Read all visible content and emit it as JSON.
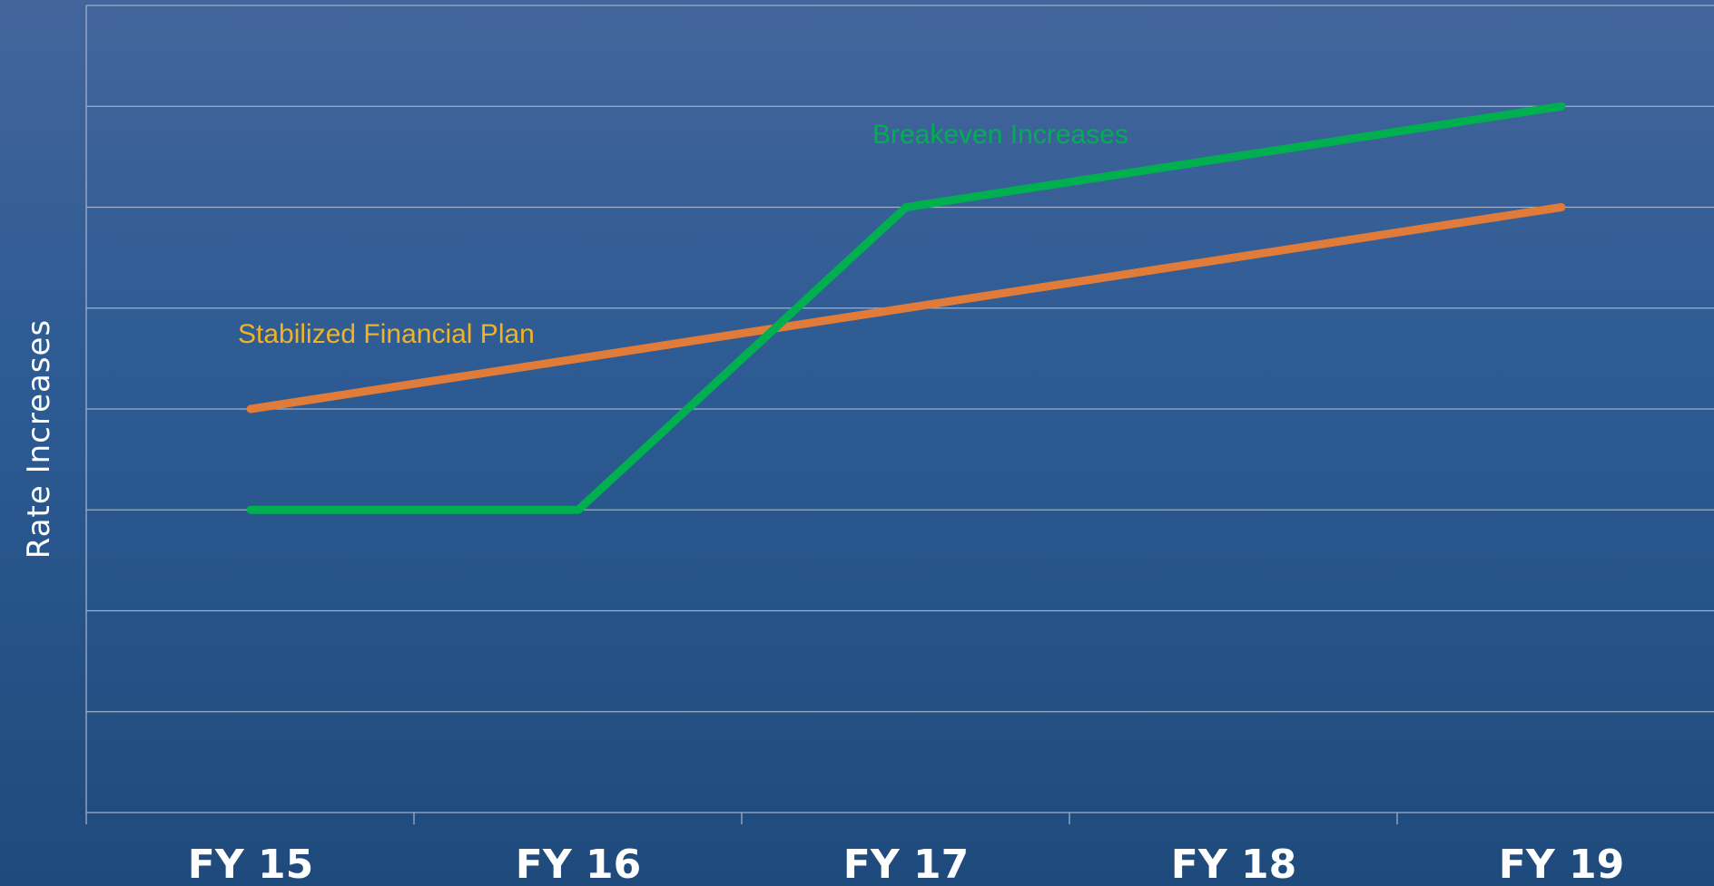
{
  "chart_data": {
    "type": "line",
    "title": "",
    "xlabel": "",
    "ylabel": "Rate Increases",
    "categories": [
      "FY 15",
      "FY 16",
      "FY 17",
      "FY 18",
      "FY 19"
    ],
    "ylim": [
      0,
      8
    ],
    "grid": true,
    "y_tick_labels_shown": false,
    "series": [
      {
        "name": "Stabilized Financial Plan",
        "color": "#e07b39",
        "values": [
          4,
          4.5,
          5,
          5.5,
          6
        ]
      },
      {
        "name": "Breakeven Increases",
        "color": "#00b050",
        "values": [
          3,
          3,
          6,
          6.5,
          7
        ]
      }
    ],
    "annotations": [
      {
        "text": "Stabilized Financial Plan",
        "series": 0,
        "color": "#f0b323"
      },
      {
        "text": "Breakeven Increases",
        "series": 1,
        "color": "#00b050"
      }
    ]
  }
}
